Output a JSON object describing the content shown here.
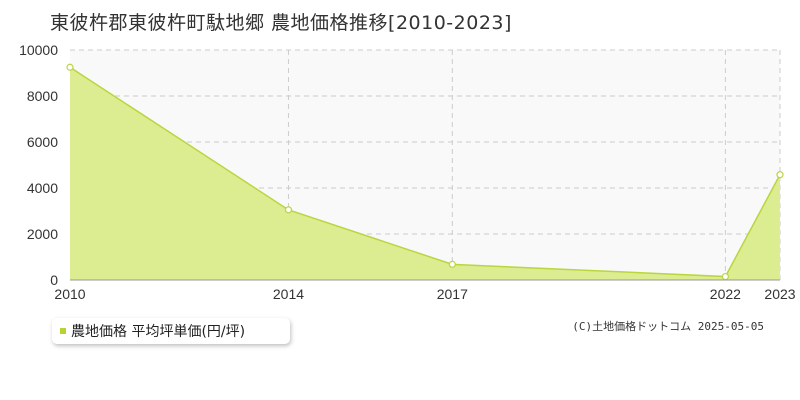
{
  "title": "東彼杵郡東彼杵町駄地郷 農地価格推移[2010-2023]",
  "legend": {
    "label": "農地価格 平均坪単価(円/坪)"
  },
  "copyright": "(C)土地価格ドットコム 2025-05-05",
  "colors": {
    "fill": "#dcec90",
    "line": "#b9d640",
    "plot_bg": "#f9f9f9",
    "grid": "#cccccc",
    "swatch": "#b5d334"
  },
  "chart_data": {
    "type": "area",
    "x": [
      2010,
      2014,
      2017,
      2022,
      2023
    ],
    "series": [
      {
        "name": "農地価格 平均坪単価(円/坪)",
        "values": [
          9250,
          3050,
          680,
          150,
          4580
        ]
      }
    ],
    "x_ticks": [
      "2010",
      "2014",
      "2017",
      "2022",
      "2023"
    ],
    "y_ticks": [
      "0",
      "2000",
      "4000",
      "6000",
      "8000",
      "10000"
    ],
    "ylim": [
      0,
      10000
    ],
    "xlim": [
      2010,
      2023
    ],
    "grid": true
  }
}
